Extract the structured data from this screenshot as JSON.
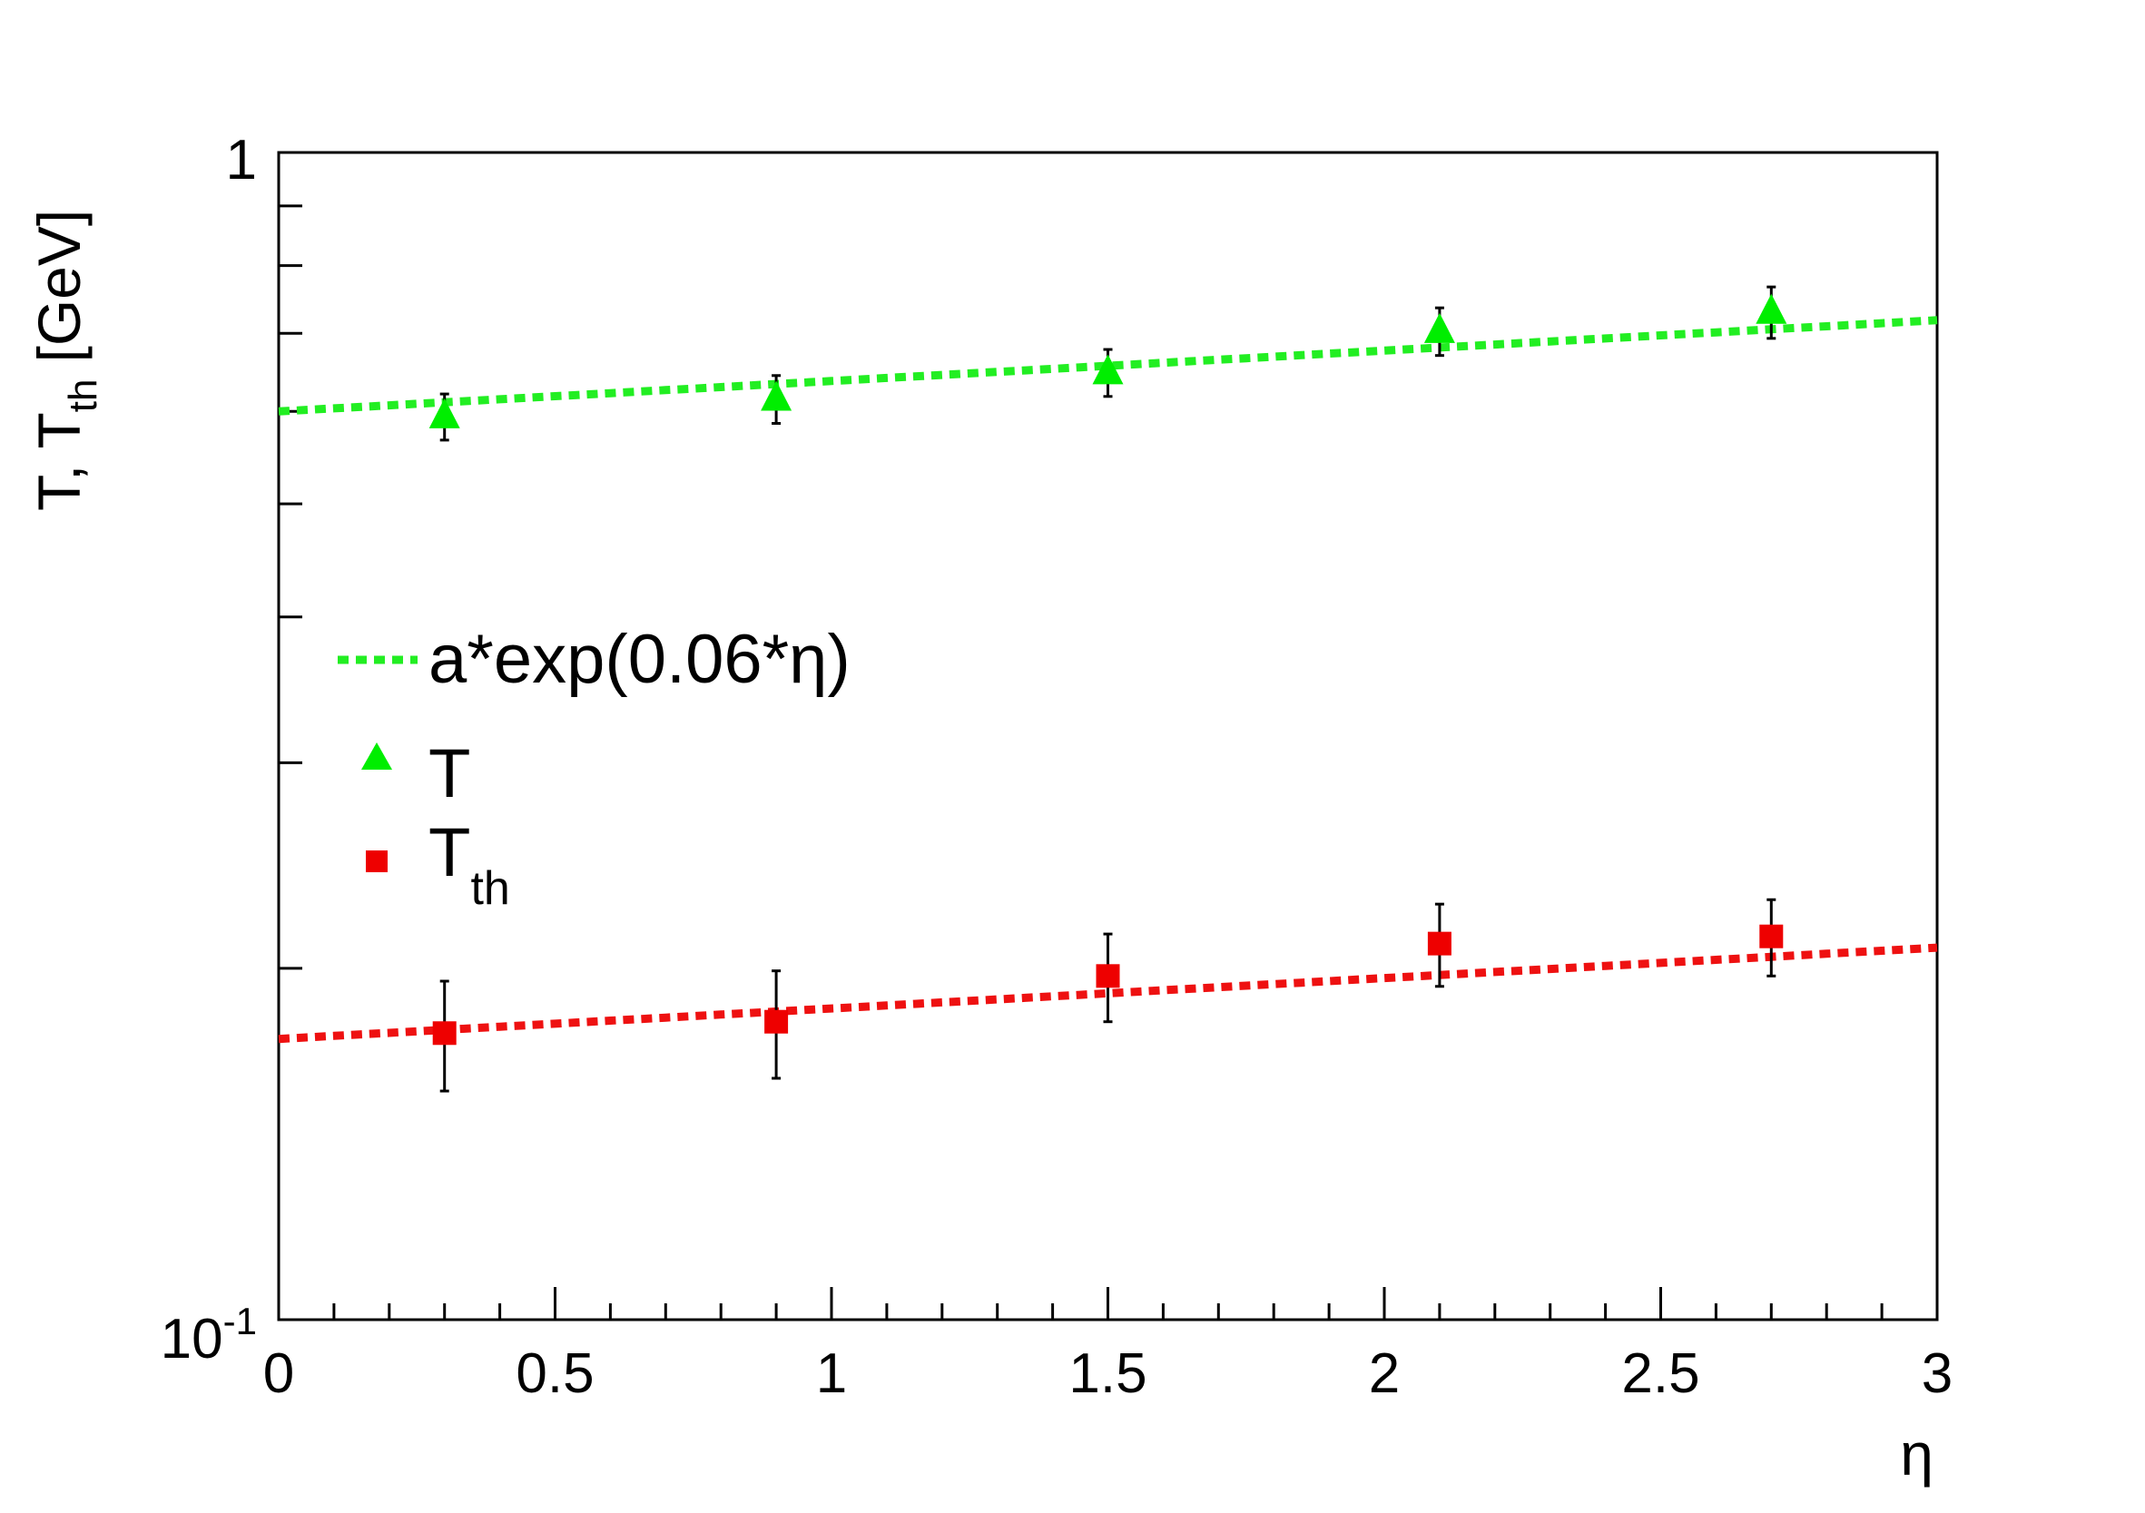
{
  "chart_data": {
    "type": "scatter",
    "xlabel": "η",
    "ylabel_main": "T, T",
    "ylabel_sub": "th",
    "ylabel_unit": "[GeV]",
    "xlim": [
      0,
      3
    ],
    "ylim": [
      0.1,
      1
    ],
    "yscale": "log",
    "grid": false,
    "legend_position": "middle-left",
    "x_ticks": [
      0,
      0.5,
      1,
      1.5,
      2,
      2.5,
      3
    ],
    "x_tick_labels": [
      "0",
      "0.5",
      "1",
      "1.5",
      "2",
      "2.5",
      "3"
    ],
    "y_tick_top_label": "1",
    "y_tick_bottom_base": "10",
    "y_tick_bottom_exp": "-1",
    "legend": {
      "fit_label": "a*exp(0.06*η)",
      "t_label": "T",
      "tth_main": "T",
      "tth_sub": "th"
    },
    "series": [
      {
        "name": "T",
        "marker": "triangle",
        "color": "#00ee00",
        "x": [
          0.3,
          0.9,
          1.5,
          2.1,
          2.7
        ],
        "y": [
          0.594,
          0.615,
          0.648,
          0.703,
          0.73
        ],
        "err": [
          0.027,
          0.029,
          0.03,
          0.033,
          0.037
        ],
        "fit": {
          "color": "#22ee22",
          "a": 0.6,
          "b": 0.06,
          "x_range": [
            0,
            3
          ]
        }
      },
      {
        "name": "T_th",
        "marker": "square",
        "color": "#ee0000",
        "x": [
          0.3,
          0.9,
          1.5,
          2.1,
          2.7
        ],
        "y": [
          0.176,
          0.18,
          0.197,
          0.21,
          0.213
        ],
        "err": [
          0.019,
          0.019,
          0.017,
          0.017,
          0.016
        ],
        "fit": {
          "color": "#ee1111",
          "a": 0.174,
          "b": 0.06,
          "x_range": [
            0,
            3
          ]
        }
      }
    ]
  }
}
